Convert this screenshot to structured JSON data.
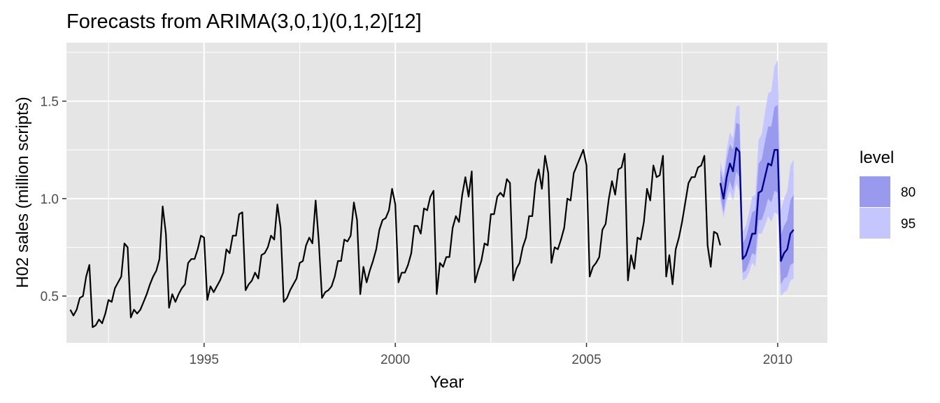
{
  "chart_data": {
    "type": "line",
    "title": "Forecasts from ARIMA(3,0,1)(0,1,2)[12]",
    "xlabel": "Year",
    "ylabel": "H02 sales (million scripts)",
    "xlim": [
      1991.4,
      2011.3
    ],
    "ylim": [
      0.26,
      1.8
    ],
    "x_ticks": [
      1995,
      2000,
      2005,
      2010
    ],
    "x_tick_labels": [
      "1995",
      "2000",
      "2005",
      "2010"
    ],
    "y_ticks": [
      0.5,
      1.0,
      1.5
    ],
    "y_tick_labels": [
      "0.5",
      "1.0",
      "1.5"
    ],
    "grid": true,
    "legend_position": "right",
    "colors": {
      "panel": "#e5e5e5",
      "grid": "#ffffff",
      "history": "#000000",
      "forecast": "#00008b",
      "band80": "#9999ee",
      "band95": "#c6c6ff"
    },
    "legend": {
      "title": "level",
      "items": [
        {
          "label": "80",
          "color": "#9999ee"
        },
        {
          "label": "95",
          "color": "#c6c6ff"
        }
      ]
    },
    "history": {
      "start": 1991.5,
      "frequency": 12,
      "values": [
        0.43,
        0.4,
        0.43,
        0.49,
        0.5,
        0.6,
        0.66,
        0.34,
        0.35,
        0.38,
        0.36,
        0.41,
        0.48,
        0.47,
        0.54,
        0.57,
        0.6,
        0.77,
        0.75,
        0.39,
        0.43,
        0.41,
        0.43,
        0.47,
        0.51,
        0.56,
        0.6,
        0.63,
        0.69,
        0.96,
        0.82,
        0.44,
        0.51,
        0.47,
        0.51,
        0.54,
        0.56,
        0.67,
        0.69,
        0.69,
        0.74,
        0.81,
        0.8,
        0.48,
        0.55,
        0.52,
        0.55,
        0.58,
        0.62,
        0.74,
        0.72,
        0.81,
        0.81,
        0.92,
        0.93,
        0.53,
        0.56,
        0.58,
        0.62,
        0.59,
        0.71,
        0.72,
        0.75,
        0.81,
        0.79,
        0.97,
        0.85,
        0.47,
        0.49,
        0.53,
        0.56,
        0.59,
        0.67,
        0.68,
        0.76,
        0.8,
        0.77,
        0.99,
        0.78,
        0.49,
        0.52,
        0.53,
        0.55,
        0.6,
        0.68,
        0.68,
        0.79,
        0.78,
        0.81,
        0.98,
        0.89,
        0.51,
        0.65,
        0.57,
        0.63,
        0.68,
        0.74,
        0.84,
        0.89,
        0.9,
        0.94,
        1.05,
        0.97,
        0.57,
        0.62,
        0.62,
        0.66,
        0.72,
        0.86,
        0.86,
        0.82,
        0.95,
        0.94,
        1.01,
        1.04,
        0.51,
        0.67,
        0.65,
        0.7,
        0.7,
        0.85,
        0.91,
        0.88,
        1.02,
        1.11,
        1.01,
        1.14,
        0.57,
        0.63,
        0.68,
        0.77,
        0.76,
        0.92,
        0.92,
        1.01,
        1.03,
        1.01,
        1.1,
        1.08,
        0.58,
        0.64,
        0.67,
        0.75,
        0.8,
        0.91,
        0.91,
        1.08,
        1.15,
        1.05,
        1.22,
        1.13,
        0.67,
        0.75,
        0.74,
        0.79,
        0.85,
        1.0,
        0.99,
        1.13,
        1.17,
        1.21,
        1.25,
        1.17,
        0.6,
        0.65,
        0.67,
        0.7,
        0.84,
        0.87,
        1.0,
        1.09,
        1.02,
        1.15,
        1.16,
        1.23,
        0.58,
        0.71,
        0.64,
        0.8,
        0.79,
        0.88,
        1.05,
        0.99,
        1.17,
        1.11,
        1.12,
        1.22,
        0.6,
        0.71,
        0.56,
        0.74,
        0.8,
        0.88,
        0.98,
        1.08,
        1.11,
        1.11,
        1.16,
        1.17,
        1.22,
        0.76,
        0.65,
        0.83,
        0.82,
        0.76
      ]
    },
    "forecast": {
      "start": 2008.5,
      "frequency": 12,
      "mean": [
        1.08,
        1.0,
        1.11,
        1.18,
        1.14,
        1.26,
        1.24,
        0.69,
        0.71,
        0.76,
        0.82,
        0.82,
        1.03,
        1.04,
        1.11,
        1.18,
        1.17,
        1.25,
        1.25,
        0.68,
        0.72,
        0.74,
        0.82,
        0.84
      ],
      "lo80": [
        1.02,
        0.93,
        1.03,
        1.09,
        1.04,
        1.14,
        1.11,
        0.62,
        0.63,
        0.67,
        0.72,
        0.71,
        0.89,
        0.89,
        0.94,
        1.0,
        0.98,
        1.04,
        1.03,
        0.56,
        0.59,
        0.6,
        0.66,
        0.67
      ],
      "hi80": [
        1.15,
        1.08,
        1.2,
        1.28,
        1.25,
        1.39,
        1.38,
        0.77,
        0.8,
        0.86,
        0.93,
        0.94,
        1.18,
        1.2,
        1.29,
        1.37,
        1.37,
        1.47,
        1.48,
        0.81,
        0.86,
        0.89,
        0.99,
        1.02
      ],
      "lo95": [
        0.99,
        0.9,
        0.99,
        1.04,
        0.99,
        1.08,
        1.04,
        0.58,
        0.59,
        0.62,
        0.67,
        0.65,
        0.82,
        0.82,
        0.86,
        0.91,
        0.88,
        0.93,
        0.92,
        0.5,
        0.52,
        0.53,
        0.58,
        0.59
      ],
      "hi95": [
        1.19,
        1.12,
        1.25,
        1.34,
        1.31,
        1.47,
        1.48,
        0.83,
        0.86,
        0.93,
        1.01,
        1.02,
        1.3,
        1.33,
        1.44,
        1.54,
        1.55,
        1.68,
        1.71,
        0.94,
        1.0,
        1.04,
        1.17,
        1.2
      ]
    }
  }
}
